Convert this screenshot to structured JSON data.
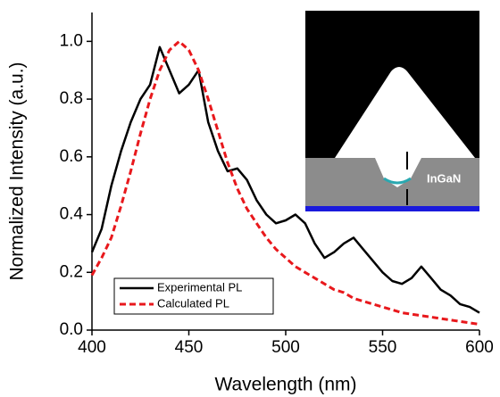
{
  "chart_data": {
    "type": "line",
    "x_label": "Wavelength (nm)",
    "y_label": "Normalized Intensity (a.u.)",
    "inset_label": "InGaN",
    "x": [
      400,
      405,
      410,
      415,
      420,
      425,
      430,
      435,
      440,
      445,
      450,
      455,
      460,
      465,
      470,
      475,
      480,
      485,
      490,
      495,
      500,
      505,
      510,
      515,
      520,
      525,
      530,
      535,
      540,
      545,
      550,
      555,
      560,
      565,
      570,
      575,
      580,
      585,
      590,
      595,
      600
    ],
    "series": [
      {
        "name": "Experimental PL",
        "color": "#000000",
        "dash": false,
        "values": [
          0.27,
          0.35,
          0.5,
          0.62,
          0.72,
          0.8,
          0.85,
          0.98,
          0.9,
          0.82,
          0.85,
          0.9,
          0.72,
          0.62,
          0.55,
          0.56,
          0.52,
          0.45,
          0.4,
          0.37,
          0.38,
          0.4,
          0.37,
          0.3,
          0.25,
          0.27,
          0.3,
          0.32,
          0.28,
          0.24,
          0.2,
          0.17,
          0.16,
          0.18,
          0.22,
          0.18,
          0.14,
          0.12,
          0.09,
          0.08,
          0.06
        ]
      },
      {
        "name": "Calculated PL",
        "color": "#e8181c",
        "dash": true,
        "values": [
          0.19,
          0.25,
          0.32,
          0.43,
          0.55,
          0.68,
          0.8,
          0.9,
          0.97,
          1.0,
          0.97,
          0.9,
          0.8,
          0.69,
          0.58,
          0.49,
          0.42,
          0.37,
          0.32,
          0.28,
          0.25,
          0.22,
          0.2,
          0.18,
          0.16,
          0.14,
          0.13,
          0.11,
          0.1,
          0.09,
          0.08,
          0.07,
          0.06,
          0.055,
          0.05,
          0.045,
          0.04,
          0.035,
          0.03,
          0.025,
          0.02
        ]
      }
    ],
    "xlim": [
      400,
      600
    ],
    "xticks": [
      400,
      450,
      500,
      550,
      600
    ],
    "ylim": [
      0,
      1.1
    ],
    "yticks": [
      {
        "value": 0,
        "label": "0.0"
      },
      0.2,
      0.4,
      0.6,
      0.8,
      {
        "value": 1,
        "label": "1.0"
      }
    ],
    "legend": "lower left"
  }
}
